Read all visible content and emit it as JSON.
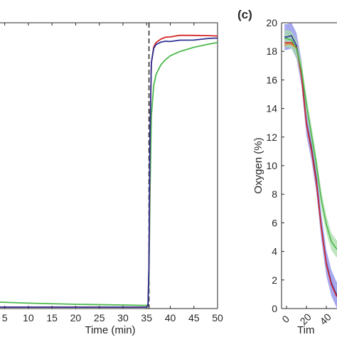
{
  "chart_data": [
    {
      "type": "line",
      "panel": "",
      "xlabel": "Time (min)",
      "ylabel": "",
      "xlim": [
        4,
        50
      ],
      "ylim": [
        0,
        20
      ],
      "xticks": [
        5,
        10,
        15,
        20,
        25,
        30,
        35,
        40,
        45,
        50
      ],
      "xtick_labels": [
        "5",
        "10",
        "15",
        "20",
        "25",
        "30",
        "35",
        "40",
        "45",
        "50"
      ],
      "vline": 35.5,
      "series": [
        {
          "color": "#2e3192",
          "x": [
            4,
            10,
            20,
            30,
            35,
            35.3,
            35.5,
            35.7,
            36,
            36.5,
            37,
            38,
            39,
            40,
            42,
            45,
            48,
            50
          ],
          "y": [
            0.1,
            0.1,
            0.1,
            0.1,
            0.1,
            0.2,
            3,
            12,
            17.2,
            18.2,
            18.5,
            18.7,
            18.8,
            18.8,
            18.9,
            18.9,
            19.0,
            19.0
          ]
        },
        {
          "color": "#d62728",
          "x": [
            4,
            10,
            20,
            30,
            35,
            35.3,
            35.5,
            35.7,
            36,
            36.5,
            37,
            38,
            39,
            40,
            42,
            45,
            48,
            50
          ],
          "y": [
            0.1,
            0.1,
            0.1,
            0.1,
            0.1,
            0.2,
            3,
            12,
            17.2,
            18.3,
            18.6,
            18.8,
            18.9,
            18.9,
            19.0,
            19.0,
            19.0,
            19.0
          ]
        },
        {
          "color": "#4cb84c",
          "x": [
            4,
            10,
            20,
            30,
            35,
            35.3,
            35.5,
            35.7,
            36,
            36.5,
            37,
            38,
            39,
            40,
            42,
            45,
            48,
            50
          ],
          "y": [
            0.45,
            0.38,
            0.3,
            0.25,
            0.22,
            0.3,
            2,
            8,
            13.5,
            15.6,
            16.4,
            17.1,
            17.5,
            17.8,
            18.1,
            18.4,
            18.6,
            18.7
          ]
        }
      ]
    },
    {
      "type": "line",
      "panel": "(c)",
      "xlabel": "Tim",
      "ylabel": "Oxygen (%)",
      "ylim": [
        0,
        20
      ],
      "yticks": [
        0,
        2,
        4,
        6,
        8,
        10,
        12,
        14,
        16,
        18,
        20
      ],
      "ytick_labels": [
        "0",
        "2",
        "4",
        "6",
        "8",
        "10",
        "12",
        "14",
        "16",
        "18",
        "20"
      ],
      "xticks": [
        0,
        20,
        40
      ],
      "xtick_labels": [
        "0",
        "20",
        "40"
      ],
      "xlim": [
        -5,
        55
      ],
      "series": [
        {
          "color": "#2e3192",
          "band": "#8a8ce8",
          "x": [
            -2,
            0,
            5,
            10,
            15,
            20,
            25,
            30,
            35,
            40,
            45,
            50,
            55
          ],
          "y": [
            19.0,
            19.0,
            19.1,
            18.4,
            16.5,
            13.0,
            11.3,
            9.0,
            5.7,
            3.2,
            1.8,
            1.0,
            0.6
          ]
        },
        {
          "color": "#d62728",
          "band": null,
          "x": [
            -2,
            0,
            5,
            10,
            15,
            20,
            25,
            30,
            35,
            40,
            45,
            50,
            55
          ],
          "y": [
            18.6,
            18.6,
            18.6,
            18.3,
            16.3,
            12.9,
            11.1,
            8.8,
            5.6,
            3.1,
            1.7,
            0.9,
            0.5
          ]
        },
        {
          "color": "#e8862a",
          "band": null,
          "x": [
            -2,
            0,
            5,
            10
          ],
          "y": [
            18.4,
            18.5,
            18.5,
            18.2
          ]
        },
        {
          "color": "#4cb84c",
          "band": "#a8dca8",
          "x": [
            -2,
            0,
            5,
            10,
            15,
            20,
            25,
            30,
            35,
            40,
            45,
            50,
            55
          ],
          "y": [
            18.9,
            18.9,
            18.8,
            18.2,
            16.7,
            14.3,
            12.2,
            10.1,
            7.6,
            5.9,
            4.7,
            4.2,
            4.0
          ]
        }
      ]
    }
  ]
}
